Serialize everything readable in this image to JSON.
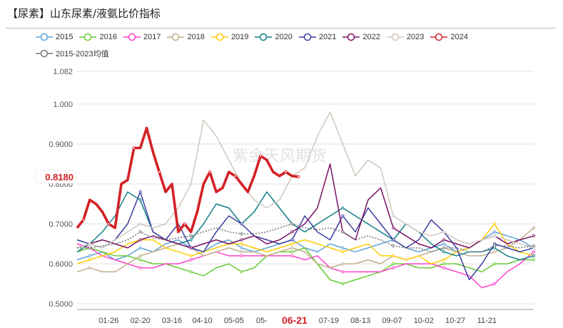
{
  "title": "【尿素】山东尿素/液氨比价指标",
  "legend_items": [
    {
      "label": "2015",
      "color": "#5fa3d9"
    },
    {
      "label": "2016",
      "color": "#66cc33"
    },
    {
      "label": "2017",
      "color": "#ff44cc"
    },
    {
      "label": "2018",
      "color": "#bfae8a"
    },
    {
      "label": "2019",
      "color": "#ffcc00"
    },
    {
      "label": "2020",
      "color": "#117f87"
    },
    {
      "label": "2021",
      "color": "#3b3fa0"
    },
    {
      "label": "2022",
      "color": "#7a1166"
    },
    {
      "label": "2023",
      "color": "#cfc8bd"
    },
    {
      "label": "2024",
      "color": "#d42126"
    },
    {
      "label": "2015-2023均值",
      "color": "#777777"
    }
  ],
  "chart_data": {
    "type": "line",
    "title": "【尿素】山东尿素/液氨比价指标",
    "xlabel": "",
    "ylabel": "",
    "y_ticks": [
      "0.5000",
      "0.6000",
      "0.7000",
      "0.8000",
      "0.9000",
      "1.000",
      "1.082"
    ],
    "y_tick_values": [
      0.5,
      0.6,
      0.7,
      0.8,
      0.9,
      1.0,
      1.082
    ],
    "ylim": [
      0.48,
      1.082
    ],
    "xlim": [
      0,
      361
    ],
    "x_tick_labels": [
      "01-26",
      "02-20",
      "03-16",
      "04-10",
      "05-05",
      "05-",
      "07-19",
      "08-13",
      "09-07",
      "10-02",
      "10-27",
      "11-21"
    ],
    "x_tick_days": [
      25,
      50,
      75,
      99,
      124,
      146,
      199,
      224,
      249,
      274,
      299,
      324
    ],
    "highlight_date": "06-21",
    "highlight_day": 172,
    "current_value_label": "0.8180",
    "current_value": 0.818,
    "watermark": "紫金天风期货",
    "series": [
      {
        "name": "2015",
        "x": [
          0,
          10,
          20,
          30,
          40,
          50,
          60,
          70,
          80,
          90,
          100,
          110,
          120,
          130,
          140,
          150,
          160,
          170,
          180,
          190,
          200,
          210,
          220,
          230,
          240,
          250,
          260,
          270,
          280,
          290,
          300,
          310,
          320,
          330,
          340,
          350,
          361
        ],
        "values": [
          0.61,
          0.62,
          0.63,
          0.61,
          0.62,
          0.64,
          0.63,
          0.65,
          0.66,
          0.64,
          0.63,
          0.65,
          0.66,
          0.64,
          0.63,
          0.64,
          0.65,
          0.66,
          0.64,
          0.63,
          0.65,
          0.64,
          0.63,
          0.64,
          0.65,
          0.66,
          0.64,
          0.63,
          0.64,
          0.65,
          0.63,
          0.64,
          0.66,
          0.68,
          0.67,
          0.66,
          0.64
        ]
      },
      {
        "name": "2016",
        "x": [
          0,
          10,
          20,
          30,
          40,
          50,
          60,
          70,
          80,
          90,
          100,
          110,
          120,
          130,
          140,
          150,
          160,
          170,
          180,
          190,
          200,
          210,
          220,
          230,
          240,
          250,
          260,
          270,
          280,
          290,
          300,
          310,
          320,
          330,
          340,
          350,
          361
        ],
        "values": [
          0.63,
          0.64,
          0.63,
          0.62,
          0.62,
          0.61,
          0.6,
          0.6,
          0.59,
          0.58,
          0.57,
          0.59,
          0.6,
          0.58,
          0.59,
          0.62,
          0.63,
          0.63,
          0.64,
          0.6,
          0.56,
          0.55,
          0.56,
          0.57,
          0.58,
          0.6,
          0.6,
          0.59,
          0.59,
          0.6,
          0.6,
          0.59,
          0.58,
          0.6,
          0.6,
          0.61,
          0.61
        ]
      },
      {
        "name": "2017",
        "x": [
          0,
          10,
          20,
          30,
          40,
          50,
          60,
          70,
          80,
          90,
          100,
          110,
          120,
          130,
          140,
          150,
          160,
          170,
          180,
          190,
          200,
          210,
          220,
          230,
          240,
          250,
          260,
          270,
          280,
          290,
          300,
          310,
          320,
          330,
          340,
          350,
          361
        ],
        "values": [
          0.65,
          0.64,
          0.62,
          0.61,
          0.6,
          0.59,
          0.59,
          0.6,
          0.6,
          0.61,
          0.62,
          0.63,
          0.62,
          0.62,
          0.62,
          0.62,
          0.62,
          0.62,
          0.61,
          0.62,
          0.59,
          0.58,
          0.58,
          0.58,
          0.58,
          0.59,
          0.6,
          0.6,
          0.6,
          0.59,
          0.58,
          0.57,
          0.54,
          0.55,
          0.58,
          0.6,
          0.63
        ]
      },
      {
        "name": "2018",
        "x": [
          0,
          10,
          20,
          30,
          40,
          50,
          60,
          70,
          80,
          90,
          100,
          110,
          120,
          130,
          140,
          150,
          160,
          170,
          180,
          190,
          200,
          210,
          220,
          230,
          240,
          250,
          260,
          270,
          280,
          290,
          300,
          310,
          320,
          330,
          340,
          350,
          361
        ],
        "values": [
          0.58,
          0.59,
          0.58,
          0.58,
          0.6,
          0.62,
          0.63,
          0.64,
          0.65,
          0.64,
          0.62,
          0.63,
          0.64,
          0.63,
          0.63,
          0.62,
          0.63,
          0.64,
          0.63,
          0.6,
          0.59,
          0.6,
          0.6,
          0.61,
          0.6,
          0.62,
          0.61,
          0.62,
          0.63,
          0.64,
          0.63,
          0.62,
          0.62,
          0.63,
          0.64,
          0.66,
          0.69
        ]
      },
      {
        "name": "2019",
        "x": [
          0,
          10,
          20,
          30,
          40,
          50,
          60,
          70,
          80,
          90,
          100,
          110,
          120,
          130,
          140,
          150,
          160,
          170,
          180,
          190,
          200,
          210,
          220,
          230,
          240,
          250,
          260,
          270,
          280,
          290,
          300,
          310,
          320,
          330,
          340,
          350,
          361
        ],
        "values": [
          0.6,
          0.61,
          0.62,
          0.63,
          0.65,
          0.66,
          0.66,
          0.64,
          0.63,
          0.62,
          0.63,
          0.64,
          0.65,
          0.65,
          0.64,
          0.63,
          0.64,
          0.65,
          0.66,
          0.65,
          0.64,
          0.63,
          0.64,
          0.65,
          0.62,
          0.62,
          0.61,
          0.62,
          0.6,
          0.61,
          0.63,
          0.64,
          0.66,
          0.7,
          0.65,
          0.63,
          0.62
        ]
      },
      {
        "name": "2020",
        "x": [
          0,
          10,
          20,
          30,
          40,
          50,
          60,
          70,
          80,
          90,
          100,
          110,
          120,
          130,
          140,
          150,
          160,
          170,
          180,
          190,
          200,
          210,
          220,
          230,
          240,
          250,
          260,
          270,
          280,
          290,
          300,
          310,
          320,
          330,
          340,
          350,
          361
        ],
        "values": [
          0.63,
          0.65,
          0.68,
          0.72,
          0.78,
          0.76,
          0.68,
          0.66,
          0.65,
          0.66,
          0.7,
          0.75,
          0.74,
          0.7,
          0.73,
          0.78,
          0.74,
          0.7,
          0.68,
          0.7,
          0.72,
          0.74,
          0.72,
          0.7,
          0.68,
          0.66,
          0.7,
          0.68,
          0.65,
          0.63,
          0.62,
          0.63,
          0.63,
          0.64,
          0.62,
          0.61,
          0.62
        ]
      },
      {
        "name": "2021",
        "x": [
          0,
          10,
          20,
          30,
          40,
          50,
          60,
          70,
          80,
          90,
          100,
          110,
          120,
          130,
          140,
          150,
          160,
          170,
          180,
          190,
          200,
          210,
          220,
          230,
          240,
          250,
          260,
          270,
          280,
          290,
          300,
          310,
          320,
          330,
          340,
          350,
          361
        ],
        "values": [
          0.66,
          0.65,
          0.64,
          0.66,
          0.7,
          0.78,
          0.68,
          0.66,
          0.7,
          0.64,
          0.63,
          0.68,
          0.72,
          0.7,
          0.67,
          0.66,
          0.65,
          0.66,
          0.72,
          0.68,
          0.66,
          0.72,
          0.68,
          0.74,
          0.7,
          0.66,
          0.64,
          0.66,
          0.71,
          0.68,
          0.64,
          0.56,
          0.6,
          0.65,
          0.64,
          0.63,
          0.64
        ]
      },
      {
        "name": "2022",
        "x": [
          0,
          10,
          20,
          30,
          40,
          50,
          60,
          70,
          80,
          90,
          100,
          110,
          120,
          130,
          140,
          150,
          160,
          170,
          180,
          190,
          200,
          210,
          220,
          230,
          240,
          250,
          260,
          270,
          280,
          290,
          300,
          310,
          320,
          330,
          340,
          350,
          361
        ],
        "values": [
          0.64,
          0.65,
          0.66,
          0.65,
          0.64,
          0.66,
          0.67,
          0.66,
          0.65,
          0.64,
          0.65,
          0.66,
          0.65,
          0.66,
          0.67,
          0.65,
          0.66,
          0.68,
          0.7,
          0.74,
          0.85,
          0.68,
          0.66,
          0.76,
          0.79,
          0.69,
          0.67,
          0.65,
          0.64,
          0.66,
          0.65,
          0.64,
          0.66,
          0.67,
          0.65,
          0.66,
          0.67
        ]
      },
      {
        "name": "2023",
        "x": [
          0,
          10,
          20,
          30,
          40,
          50,
          60,
          70,
          80,
          90,
          100,
          110,
          120,
          130,
          140,
          150,
          160,
          170,
          180,
          190,
          200,
          210,
          220,
          230,
          240,
          250,
          260,
          270,
          280,
          290,
          300,
          310,
          320,
          330,
          340,
          350,
          361
        ],
        "values": [
          0.64,
          0.65,
          0.64,
          0.66,
          0.68,
          0.7,
          0.69,
          0.7,
          0.74,
          0.8,
          0.96,
          0.92,
          0.86,
          0.8,
          0.76,
          0.74,
          0.76,
          0.82,
          0.84,
          0.92,
          0.98,
          0.9,
          0.82,
          0.86,
          0.84,
          0.72,
          0.7,
          0.68,
          0.67,
          0.68,
          0.66,
          0.65,
          0.66,
          0.67,
          0.66,
          0.65,
          0.64
        ]
      },
      {
        "name": "2024",
        "x": [
          0,
          5,
          10,
          15,
          20,
          25,
          30,
          35,
          40,
          45,
          50,
          55,
          60,
          65,
          70,
          75,
          80,
          85,
          90,
          95,
          100,
          105,
          110,
          115,
          120,
          125,
          130,
          135,
          140,
          145,
          150,
          155,
          160,
          165,
          170,
          175
        ],
        "values": [
          0.69,
          0.71,
          0.76,
          0.75,
          0.73,
          0.7,
          0.69,
          0.8,
          0.81,
          0.89,
          0.89,
          0.94,
          0.88,
          0.83,
          0.78,
          0.8,
          0.68,
          0.7,
          0.68,
          0.73,
          0.8,
          0.83,
          0.78,
          0.79,
          0.83,
          0.82,
          0.8,
          0.78,
          0.82,
          0.87,
          0.86,
          0.83,
          0.82,
          0.83,
          0.82,
          0.818
        ]
      },
      {
        "name": "2015-2023均值",
        "x": [
          0,
          10,
          20,
          30,
          40,
          50,
          60,
          70,
          80,
          90,
          100,
          110,
          120,
          130,
          140,
          150,
          160,
          170,
          180,
          190,
          200,
          210,
          220,
          230,
          240,
          250,
          260,
          270,
          280,
          290,
          300,
          310,
          320,
          330,
          340,
          350,
          361
        ],
        "values": [
          0.64,
          0.64,
          0.645,
          0.65,
          0.66,
          0.68,
          0.665,
          0.66,
          0.665,
          0.67,
          0.68,
          0.69,
          0.68,
          0.675,
          0.675,
          0.68,
          0.69,
          0.7,
          0.69,
          0.685,
          0.69,
          0.68,
          0.66,
          0.67,
          0.66,
          0.645,
          0.64,
          0.64,
          0.63,
          0.64,
          0.64,
          0.63,
          0.63,
          0.645,
          0.645,
          0.64,
          0.645
        ]
      }
    ]
  }
}
